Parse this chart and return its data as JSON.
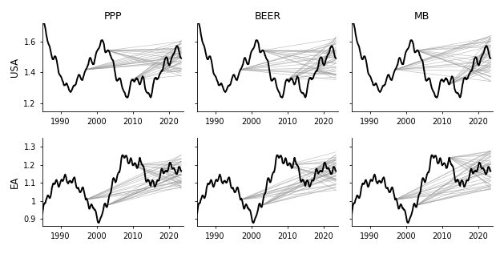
{
  "col_titles": [
    "PPP",
    "BEER",
    "MB"
  ],
  "row_labels": [
    "USA",
    "EA"
  ],
  "usa_ylim": [
    1.15,
    1.72
  ],
  "ea_ylim": [
    0.86,
    1.35
  ],
  "usa_yticks": [
    1.2,
    1.4,
    1.6
  ],
  "ea_yticks": [
    0.9,
    1.0,
    1.1,
    1.2,
    1.3
  ],
  "xticks": [
    1990,
    2000,
    2010,
    2020
  ],
  "xmin": 1985,
  "xmax": 2024,
  "background": "#ffffff",
  "black_lw": 1.4,
  "gray_lw": 0.45,
  "gray_color": "#999999",
  "black_color": "#000000",
  "n_fan_lines": 18,
  "title_fontsize": 9,
  "label_fontsize": 8.5,
  "tick_fontsize": 7
}
